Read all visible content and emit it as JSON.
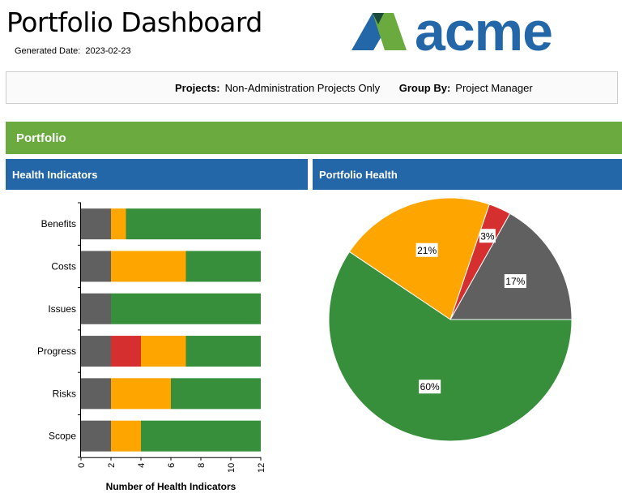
{
  "header": {
    "title": "Portfolio Dashboard",
    "generated_label": "Generated Date:",
    "generated_value": "2023-02-23"
  },
  "logo": {
    "text": "acme",
    "colors": {
      "dark": "#1b4a3a",
      "blue": "#2367a8",
      "green": "#6aaa3f"
    }
  },
  "filters": {
    "projects_label": "Projects:",
    "projects_value": "Non-Administration Projects Only",
    "group_label": "Group By:",
    "group_value": "Project Manager"
  },
  "sections": {
    "portfolio": "Portfolio",
    "health_indicators": "Health Indicators",
    "portfolio_health": "Portfolio Health"
  },
  "colors": {
    "gray": "#606060",
    "orange": "#ffa500",
    "red": "#d62f2f",
    "green": "#378f3c",
    "header_blue": "#2367a8",
    "header_green": "#6aaa3f"
  },
  "chart_data": [
    {
      "type": "bar",
      "orientation": "horizontal",
      "stacked": true,
      "categories": [
        "Benefits",
        "Costs",
        "Issues",
        "Progress",
        "Risks",
        "Scope"
      ],
      "series": [
        {
          "color": "#606060",
          "values": [
            2,
            2,
            2,
            2,
            2,
            2
          ]
        },
        {
          "color": "#d62f2f",
          "values": [
            0,
            0,
            0,
            2,
            0,
            0
          ]
        },
        {
          "color": "#ffa500",
          "values": [
            1,
            5,
            0,
            3,
            4,
            2
          ]
        },
        {
          "color": "#378f3c",
          "values": [
            9,
            5,
            10,
            5,
            6,
            8
          ]
        }
      ],
      "xlabel": "Number of Health Indicators",
      "xlim": [
        0,
        12
      ],
      "xticks": [
        "0",
        "2",
        "4",
        "6",
        "8",
        "10",
        "12"
      ]
    },
    {
      "type": "pie",
      "slices": [
        {
          "label": "17%",
          "value": 17,
          "color": "#606060"
        },
        {
          "label": "3%",
          "value": 3,
          "color": "#d62f2f"
        },
        {
          "label": "21%",
          "value": 21,
          "color": "#ffa500"
        },
        {
          "label": "60%",
          "value": 60,
          "color": "#378f3c"
        }
      ]
    }
  ]
}
